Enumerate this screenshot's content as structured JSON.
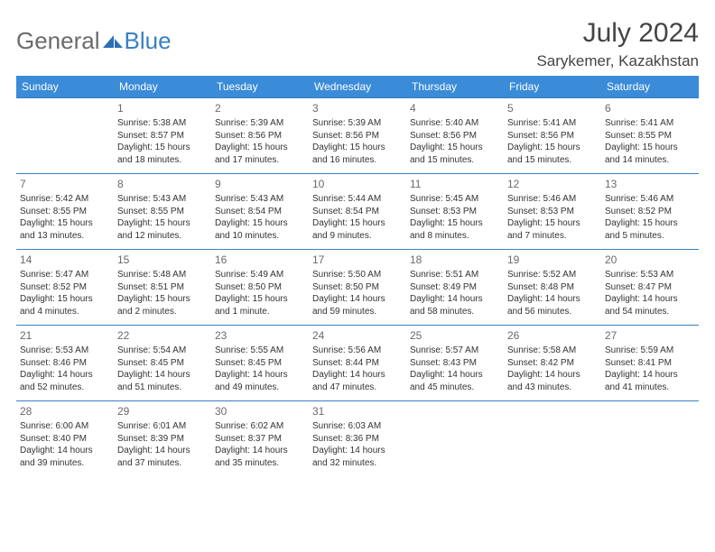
{
  "logo": {
    "text1": "General",
    "text2": "Blue"
  },
  "title": "July 2024",
  "location": "Sarykemer, Kazakhstan",
  "colors": {
    "header_bg": "#3a8bd8",
    "header_text": "#ffffff",
    "border": "#3a7fc4",
    "logo_gray": "#6b6b6b",
    "logo_blue": "#3a7fc4",
    "text": "#333333",
    "daynum": "#6a6a6a",
    "background": "#ffffff"
  },
  "weekdays": [
    "Sunday",
    "Monday",
    "Tuesday",
    "Wednesday",
    "Thursday",
    "Friday",
    "Saturday"
  ],
  "weeks": [
    [
      null,
      {
        "n": "1",
        "sr": "5:38 AM",
        "ss": "8:57 PM",
        "dl": "15 hours and 18 minutes."
      },
      {
        "n": "2",
        "sr": "5:39 AM",
        "ss": "8:56 PM",
        "dl": "15 hours and 17 minutes."
      },
      {
        "n": "3",
        "sr": "5:39 AM",
        "ss": "8:56 PM",
        "dl": "15 hours and 16 minutes."
      },
      {
        "n": "4",
        "sr": "5:40 AM",
        "ss": "8:56 PM",
        "dl": "15 hours and 15 minutes."
      },
      {
        "n": "5",
        "sr": "5:41 AM",
        "ss": "8:56 PM",
        "dl": "15 hours and 15 minutes."
      },
      {
        "n": "6",
        "sr": "5:41 AM",
        "ss": "8:55 PM",
        "dl": "15 hours and 14 minutes."
      }
    ],
    [
      {
        "n": "7",
        "sr": "5:42 AM",
        "ss": "8:55 PM",
        "dl": "15 hours and 13 minutes."
      },
      {
        "n": "8",
        "sr": "5:43 AM",
        "ss": "8:55 PM",
        "dl": "15 hours and 12 minutes."
      },
      {
        "n": "9",
        "sr": "5:43 AM",
        "ss": "8:54 PM",
        "dl": "15 hours and 10 minutes."
      },
      {
        "n": "10",
        "sr": "5:44 AM",
        "ss": "8:54 PM",
        "dl": "15 hours and 9 minutes."
      },
      {
        "n": "11",
        "sr": "5:45 AM",
        "ss": "8:53 PM",
        "dl": "15 hours and 8 minutes."
      },
      {
        "n": "12",
        "sr": "5:46 AM",
        "ss": "8:53 PM",
        "dl": "15 hours and 7 minutes."
      },
      {
        "n": "13",
        "sr": "5:46 AM",
        "ss": "8:52 PM",
        "dl": "15 hours and 5 minutes."
      }
    ],
    [
      {
        "n": "14",
        "sr": "5:47 AM",
        "ss": "8:52 PM",
        "dl": "15 hours and 4 minutes."
      },
      {
        "n": "15",
        "sr": "5:48 AM",
        "ss": "8:51 PM",
        "dl": "15 hours and 2 minutes."
      },
      {
        "n": "16",
        "sr": "5:49 AM",
        "ss": "8:50 PM",
        "dl": "15 hours and 1 minute."
      },
      {
        "n": "17",
        "sr": "5:50 AM",
        "ss": "8:50 PM",
        "dl": "14 hours and 59 minutes."
      },
      {
        "n": "18",
        "sr": "5:51 AM",
        "ss": "8:49 PM",
        "dl": "14 hours and 58 minutes."
      },
      {
        "n": "19",
        "sr": "5:52 AM",
        "ss": "8:48 PM",
        "dl": "14 hours and 56 minutes."
      },
      {
        "n": "20",
        "sr": "5:53 AM",
        "ss": "8:47 PM",
        "dl": "14 hours and 54 minutes."
      }
    ],
    [
      {
        "n": "21",
        "sr": "5:53 AM",
        "ss": "8:46 PM",
        "dl": "14 hours and 52 minutes."
      },
      {
        "n": "22",
        "sr": "5:54 AM",
        "ss": "8:45 PM",
        "dl": "14 hours and 51 minutes."
      },
      {
        "n": "23",
        "sr": "5:55 AM",
        "ss": "8:45 PM",
        "dl": "14 hours and 49 minutes."
      },
      {
        "n": "24",
        "sr": "5:56 AM",
        "ss": "8:44 PM",
        "dl": "14 hours and 47 minutes."
      },
      {
        "n": "25",
        "sr": "5:57 AM",
        "ss": "8:43 PM",
        "dl": "14 hours and 45 minutes."
      },
      {
        "n": "26",
        "sr": "5:58 AM",
        "ss": "8:42 PM",
        "dl": "14 hours and 43 minutes."
      },
      {
        "n": "27",
        "sr": "5:59 AM",
        "ss": "8:41 PM",
        "dl": "14 hours and 41 minutes."
      }
    ],
    [
      {
        "n": "28",
        "sr": "6:00 AM",
        "ss": "8:40 PM",
        "dl": "14 hours and 39 minutes."
      },
      {
        "n": "29",
        "sr": "6:01 AM",
        "ss": "8:39 PM",
        "dl": "14 hours and 37 minutes."
      },
      {
        "n": "30",
        "sr": "6:02 AM",
        "ss": "8:37 PM",
        "dl": "14 hours and 35 minutes."
      },
      {
        "n": "31",
        "sr": "6:03 AM",
        "ss": "8:36 PM",
        "dl": "14 hours and 32 minutes."
      },
      null,
      null,
      null
    ]
  ],
  "labels": {
    "sunrise": "Sunrise: ",
    "sunset": "Sunset: ",
    "daylight": "Daylight: "
  }
}
